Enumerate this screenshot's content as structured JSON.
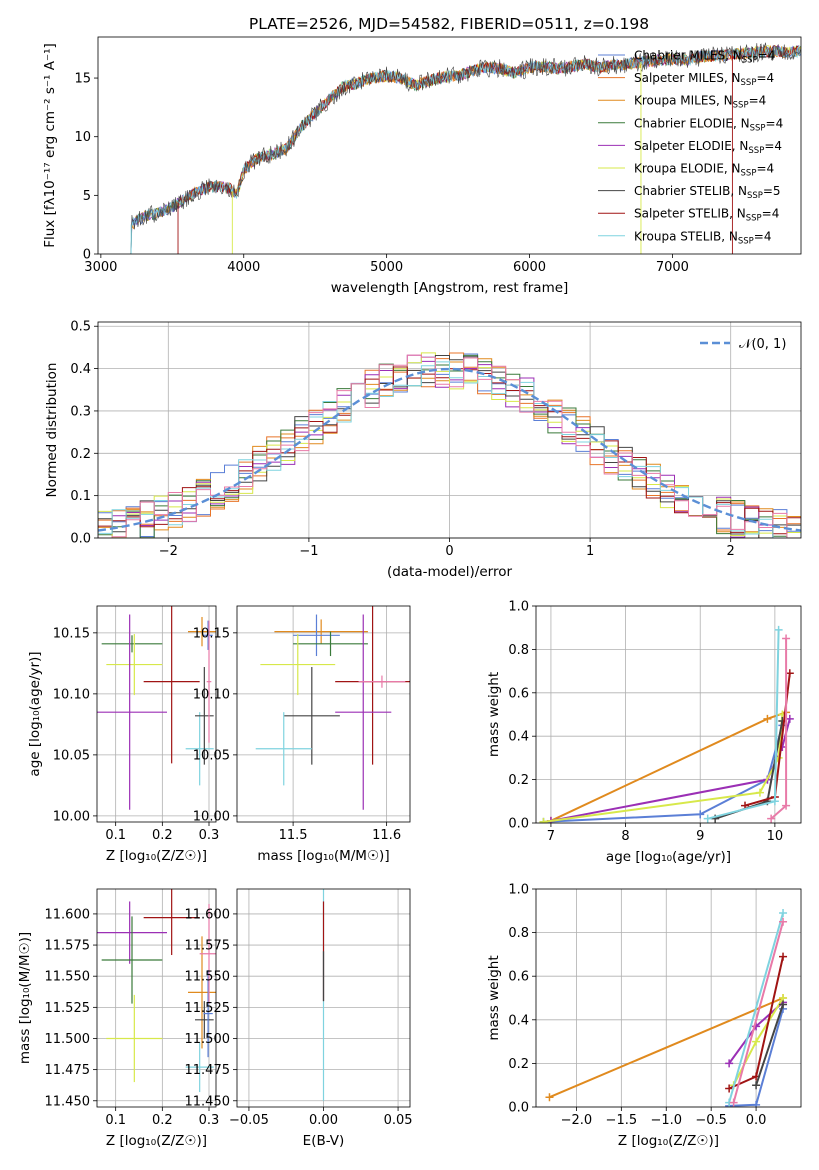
{
  "figure": {
    "title": "PLATE=2526, MJD=54582, FIBERID=0511, z=0.198"
  },
  "colors": {
    "chabrier_miles": "#5b7fd6",
    "salpeter_miles": "#e8752a",
    "kroupa_miles": "#e08a1e",
    "chabrier_elodie": "#3a7a3a",
    "salpeter_elodie": "#9b2fb5",
    "kroupa_elodie": "#d7e84a",
    "chabrier_stelib": "#444444",
    "salpeter_stelib": "#a01414",
    "kroupa_stelib": "#7fd3df",
    "pink": "#e87aa8",
    "normal": "#5b8fd6"
  },
  "chart_data": [
    {
      "id": "spectrum",
      "type": "line",
      "xlabel": "wavelength [Angstrom, rest frame]",
      "ylabel": "Flux [fλ10⁻¹⁷ erg cm⁻² s⁻¹ A⁻¹]",
      "xlim": [
        2980,
        7900
      ],
      "ylim": [
        0,
        18.5
      ],
      "xticks": [
        3000,
        4000,
        5000,
        6000,
        7000
      ],
      "yticks": [
        0,
        5,
        10,
        15
      ],
      "grid": false,
      "legend_position": "right",
      "series": [
        {
          "name": "Chabrier MILES, N_SSP=4",
          "label": "Chabrier MILES, N",
          "sub": "SSP",
          "tail": "=4",
          "color": "chabrier_miles"
        },
        {
          "name": "Salpeter MILES, N_SSP=4",
          "label": "Salpeter MILES, N",
          "sub": "SSP",
          "tail": "=4",
          "color": "salpeter_miles"
        },
        {
          "name": "Kroupa MILES, N_SSP=4",
          "label": "Kroupa MILES, N",
          "sub": "SSP",
          "tail": "=4",
          "color": "kroupa_miles"
        },
        {
          "name": "Chabrier ELODIE, N_SSP=4",
          "label": "Chabrier ELODIE, N",
          "sub": "SSP",
          "tail": "=4",
          "color": "chabrier_elodie"
        },
        {
          "name": "Salpeter ELODIE, N_SSP=4",
          "label": "Salpeter ELODIE, N",
          "sub": "SSP",
          "tail": "=4",
          "color": "salpeter_elodie"
        },
        {
          "name": "Kroupa ELODIE, N_SSP=4",
          "label": "Kroupa ELODIE, N",
          "sub": "SSP",
          "tail": "=4",
          "color": "kroupa_elodie"
        },
        {
          "name": "Chabrier STELIB, N_SSP=5",
          "label": "Chabrier STELIB, N",
          "sub": "SSP",
          "tail": "=5",
          "color": "chabrier_stelib"
        },
        {
          "name": "Salpeter STELIB, N_SSP=4",
          "label": "Salpeter STELIB, N",
          "sub": "SSP",
          "tail": "=4",
          "color": "salpeter_stelib"
        },
        {
          "name": "Kroupa STELIB, N_SSP=4",
          "label": "Kroupa STELIB, N",
          "sub": "SSP",
          "tail": "=4",
          "color": "kroupa_stelib"
        }
      ],
      "envelope": [
        [
          3200,
          0
        ],
        [
          3210,
          2.5
        ],
        [
          3300,
          3.2
        ],
        [
          3400,
          3.5
        ],
        [
          3500,
          4.0
        ],
        [
          3600,
          4.8
        ],
        [
          3700,
          5.5
        ],
        [
          3800,
          5.8
        ],
        [
          3900,
          5.6
        ],
        [
          3950,
          5.0
        ],
        [
          4000,
          7.2
        ],
        [
          4100,
          8.2
        ],
        [
          4200,
          8.5
        ],
        [
          4300,
          9.0
        ],
        [
          4400,
          10.8
        ],
        [
          4500,
          12.0
        ],
        [
          4600,
          13.2
        ],
        [
          4700,
          14.3
        ],
        [
          4800,
          14.6
        ],
        [
          4900,
          15.0
        ],
        [
          5000,
          15.2
        ],
        [
          5100,
          15.0
        ],
        [
          5200,
          14.4
        ],
        [
          5300,
          14.8
        ],
        [
          5400,
          15.1
        ],
        [
          5500,
          15.2
        ],
        [
          5600,
          15.6
        ],
        [
          5700,
          15.9
        ],
        [
          5800,
          15.8
        ],
        [
          5900,
          15.4
        ],
        [
          6000,
          15.9
        ],
        [
          6100,
          16.0
        ],
        [
          6200,
          15.8
        ],
        [
          6300,
          16.0
        ],
        [
          6400,
          16.2
        ],
        [
          6500,
          15.9
        ],
        [
          6600,
          16.1
        ],
        [
          6700,
          16.2
        ],
        [
          6800,
          16.4
        ],
        [
          6900,
          16.5
        ],
        [
          7000,
          16.6
        ],
        [
          7100,
          16.5
        ],
        [
          7200,
          16.8
        ],
        [
          7300,
          16.9
        ],
        [
          7400,
          17.0
        ],
        [
          7500,
          17.1
        ],
        [
          7600,
          17.2
        ],
        [
          7700,
          17.3
        ],
        [
          7800,
          17.2
        ],
        [
          7900,
          17.3
        ]
      ]
    },
    {
      "id": "residuals",
      "type": "line",
      "xlabel": "(data-model)/error",
      "ylabel": "Normed distribution",
      "xlim": [
        -2.5,
        2.5
      ],
      "ylim": [
        0,
        0.51
      ],
      "xticks": [
        -2,
        -1,
        0,
        1,
        2
      ],
      "yticks": [
        0.0,
        0.1,
        0.2,
        0.3,
        0.4,
        0.5
      ],
      "grid": true,
      "legend_position": "top-right",
      "normal_label": "𝒩(0, 1)",
      "bin_width": 0.1
    },
    {
      "id": "age_vs_Z",
      "type": "scatter",
      "xlabel": "Z [log₁₀(Z/Z☉)]",
      "ylabel": "age  [log₁₀(age/yr)]",
      "xlim": [
        0.06,
        0.315
      ],
      "ylim": [
        9.995,
        10.172
      ],
      "xticks": [
        0.1,
        0.2,
        0.3
      ],
      "yticks": [
        10.0,
        10.05,
        10.1,
        10.15
      ],
      "grid": true,
      "points": [
        {
          "x": 0.135,
          "xerr": 0.065,
          "y": 10.141,
          "yerr": 0.007,
          "color": "chabrier_elodie"
        },
        {
          "x": 0.14,
          "xerr": 0.06,
          "y": 10.124,
          "yerr": 0.025,
          "color": "kroupa_elodie"
        },
        {
          "x": 0.13,
          "xerr": 0.08,
          "y": 10.085,
          "yerr": 0.08,
          "color": "salpeter_elodie"
        },
        {
          "x": 0.22,
          "xerr": 0.06,
          "y": 10.11,
          "yerr": 0.067,
          "color": "salpeter_stelib"
        },
        {
          "x": 0.285,
          "xerr": 0.03,
          "y": 10.151,
          "yerr": 0.012,
          "color": "kroupa_miles"
        },
        {
          "x": 0.298,
          "xerr": 0.01,
          "y": 10.148,
          "yerr": 0.012,
          "color": "chabrier_miles"
        },
        {
          "x": 0.28,
          "xerr": 0.03,
          "y": 10.055,
          "yerr": 0.03,
          "color": "kroupa_stelib"
        },
        {
          "x": 0.29,
          "xerr": 0.02,
          "y": 10.082,
          "yerr": 0.04,
          "color": "chabrier_stelib"
        },
        {
          "x": 0.3,
          "xerr": 0.005,
          "y": 10.11,
          "yerr": 0.05,
          "color": "pink"
        }
      ]
    },
    {
      "id": "age_vs_mass",
      "type": "scatter",
      "xlabel": "mass [log₁₀(M/M☉)]",
      "ylabel": "",
      "xlim": [
        11.44,
        11.625
      ],
      "ylim": [
        9.995,
        10.172
      ],
      "xticks": [
        11.5,
        11.6
      ],
      "yticks": [
        10.0,
        10.05,
        10.1,
        10.15
      ],
      "grid": true,
      "points": [
        {
          "x": 11.53,
          "xerr": 0.05,
          "y": 10.151,
          "yerr": 0.01,
          "color": "kroupa_miles"
        },
        {
          "x": 11.525,
          "xerr": 0.025,
          "y": 10.148,
          "yerr": 0.017,
          "color": "chabrier_miles"
        },
        {
          "x": 11.54,
          "xerr": 0.04,
          "y": 10.141,
          "yerr": 0.01,
          "color": "chabrier_elodie"
        },
        {
          "x": 11.505,
          "xerr": 0.04,
          "y": 10.124,
          "yerr": 0.025,
          "color": "kroupa_elodie"
        },
        {
          "x": 11.585,
          "xerr": 0.04,
          "y": 10.11,
          "yerr": 0.068,
          "color": "salpeter_stelib"
        },
        {
          "x": 11.575,
          "xerr": 0.03,
          "y": 10.085,
          "yerr": 0.08,
          "color": "salpeter_elodie"
        },
        {
          "x": 11.52,
          "xerr": 0.03,
          "y": 10.082,
          "yerr": 0.04,
          "color": "chabrier_stelib"
        },
        {
          "x": 11.49,
          "xerr": 0.03,
          "y": 10.055,
          "yerr": 0.03,
          "color": "kroupa_stelib"
        },
        {
          "x": 11.595,
          "xerr": 0.025,
          "y": 10.11,
          "yerr": 0.005,
          "color": "pink"
        }
      ]
    },
    {
      "id": "weight_vs_age",
      "type": "line",
      "xlabel": "age  [log₁₀(age/yr)]",
      "ylabel": "mass weight",
      "xlim": [
        6.8,
        10.35
      ],
      "ylim": [
        0,
        1.0
      ],
      "xticks": [
        7,
        8,
        9,
        10
      ],
      "yticks": [
        0.0,
        0.2,
        0.4,
        0.6,
        0.8,
        1.0
      ],
      "grid": true,
      "series": [
        {
          "color": "chabrier_miles",
          "x": [
            6.9,
            9.0,
            9.9,
            10.1
          ],
          "y": [
            0.005,
            0.04,
            0.2,
            0.45
          ]
        },
        {
          "color": "kroupa_miles",
          "x": [
            7.0,
            9.9,
            10.15
          ],
          "y": [
            0.01,
            0.48,
            0.51
          ]
        },
        {
          "color": "salpeter_elodie",
          "x": [
            7.0,
            9.9,
            10.1,
            10.2
          ],
          "y": [
            0.01,
            0.2,
            0.35,
            0.48
          ]
        },
        {
          "color": "kroupa_elodie",
          "x": [
            6.9,
            9.8,
            10.05,
            10.1
          ],
          "y": [
            0.005,
            0.14,
            0.3,
            0.5
          ]
        },
        {
          "color": "chabrier_stelib",
          "x": [
            9.2,
            9.9,
            10.1
          ],
          "y": [
            0.02,
            0.1,
            0.47
          ]
        },
        {
          "color": "salpeter_stelib",
          "x": [
            9.6,
            10.0,
            10.2
          ],
          "y": [
            0.08,
            0.12,
            0.69
          ]
        },
        {
          "color": "kroupa_stelib",
          "x": [
            9.1,
            10.0,
            10.05
          ],
          "y": [
            0.02,
            0.1,
            0.89
          ]
        },
        {
          "color": "pink",
          "x": [
            9.95,
            10.15,
            10.15
          ],
          "y": [
            0.02,
            0.08,
            0.85
          ]
        }
      ]
    },
    {
      "id": "mass_vs_Z",
      "type": "scatter",
      "xlabel": "Z [log₁₀(Z/Z☉)]",
      "ylabel": "mass [log₁₀(M/M☉)]",
      "xlim": [
        0.06,
        0.315
      ],
      "ylim": [
        11.445,
        11.62
      ],
      "xticks": [
        0.1,
        0.2,
        0.3
      ],
      "yticks": [
        11.45,
        11.475,
        11.5,
        11.525,
        11.55,
        11.575,
        11.6
      ],
      "grid": true,
      "points": [
        {
          "x": 0.13,
          "xerr": 0.08,
          "y": 11.585,
          "yerr": 0.025,
          "color": "salpeter_elodie"
        },
        {
          "x": 0.22,
          "xerr": 0.06,
          "y": 11.597,
          "yerr": 0.03,
          "color": "salpeter_stelib"
        },
        {
          "x": 0.135,
          "xerr": 0.065,
          "y": 11.563,
          "yerr": 0.035,
          "color": "chabrier_elodie"
        },
        {
          "x": 0.14,
          "xerr": 0.06,
          "y": 11.5,
          "yerr": 0.035,
          "color": "kroupa_elodie"
        },
        {
          "x": 0.285,
          "xerr": 0.03,
          "y": 11.537,
          "yerr": 0.045,
          "color": "kroupa_miles"
        },
        {
          "x": 0.29,
          "xerr": 0.02,
          "y": 11.515,
          "yerr": 0.015,
          "color": "chabrier_stelib"
        },
        {
          "x": 0.298,
          "xerr": 0.01,
          "y": 11.52,
          "yerr": 0.035,
          "color": "chabrier_miles"
        },
        {
          "x": 0.28,
          "xerr": 0.03,
          "y": 11.477,
          "yerr": 0.02,
          "color": "kroupa_stelib"
        },
        {
          "x": 0.3,
          "xerr": 0.02,
          "y": 11.568,
          "yerr": 0.04,
          "color": "pink"
        }
      ]
    },
    {
      "id": "mass_vs_ebv",
      "type": "scatter",
      "xlabel": "E(B-V)",
      "ylabel": "",
      "xlim": [
        -0.058,
        0.058
      ],
      "ylim": [
        11.445,
        11.62
      ],
      "xticks": [
        -0.05,
        0.0,
        0.05
      ],
      "xtick_labels": [
        "−0.05",
        "0.00",
        "0.05"
      ],
      "yticks": [
        11.45,
        11.475,
        11.5,
        11.525,
        11.55,
        11.575,
        11.6
      ],
      "grid": true,
      "points": [
        {
          "x": 0,
          "xerr": 0,
          "y": 11.55,
          "yerr": 0.1,
          "color": "kroupa_stelib"
        },
        {
          "x": 0,
          "xerr": 0,
          "y": 11.57,
          "yerr": 0.04,
          "color": "salpeter_stelib"
        },
        {
          "x": 0,
          "xerr": 0,
          "y": 11.55,
          "yerr": 0.02,
          "color": "chabrier_stelib"
        }
      ]
    },
    {
      "id": "weight_vs_Z",
      "type": "line",
      "xlabel": "Z [log₁₀(Z/Z☉)]",
      "ylabel": "mass weight",
      "xlim": [
        -2.45,
        0.5
      ],
      "ylim": [
        0,
        1.0
      ],
      "xticks": [
        -2.0,
        -1.5,
        -1.0,
        -0.5,
        0.0
      ],
      "xtick_labels": [
        "−2.0",
        "−1.5",
        "−1.0",
        "−0.5",
        "0.0"
      ],
      "yticks": [
        0.0,
        0.2,
        0.4,
        0.6,
        0.8,
        1.0
      ],
      "grid": true,
      "series": [
        {
          "color": "kroupa_miles",
          "x": [
            -2.3,
            0.3
          ],
          "y": [
            0.045,
            0.5
          ]
        },
        {
          "color": "chabrier_miles",
          "x": [
            -0.3,
            0.0,
            0.3
          ],
          "y": [
            0.005,
            0.01,
            0.45
          ]
        },
        {
          "color": "salpeter_elodie",
          "x": [
            -0.3,
            0.0,
            0.3
          ],
          "y": [
            0.2,
            0.37,
            0.48
          ]
        },
        {
          "color": "kroupa_elodie",
          "x": [
            -0.25,
            0.0,
            0.3
          ],
          "y": [
            0.1,
            0.3,
            0.5
          ]
        },
        {
          "color": "salpeter_stelib",
          "x": [
            -0.3,
            0.0,
            0.3
          ],
          "y": [
            0.085,
            0.14,
            0.69
          ]
        },
        {
          "color": "chabrier_stelib",
          "x": [
            0.0,
            0.3
          ],
          "y": [
            0.1,
            0.47
          ]
        },
        {
          "color": "kroupa_stelib",
          "x": [
            -0.3,
            0.3
          ],
          "y": [
            0.02,
            0.89
          ]
        },
        {
          "color": "pink",
          "x": [
            -0.25,
            0.3
          ],
          "y": [
            0.02,
            0.85
          ]
        }
      ]
    }
  ]
}
